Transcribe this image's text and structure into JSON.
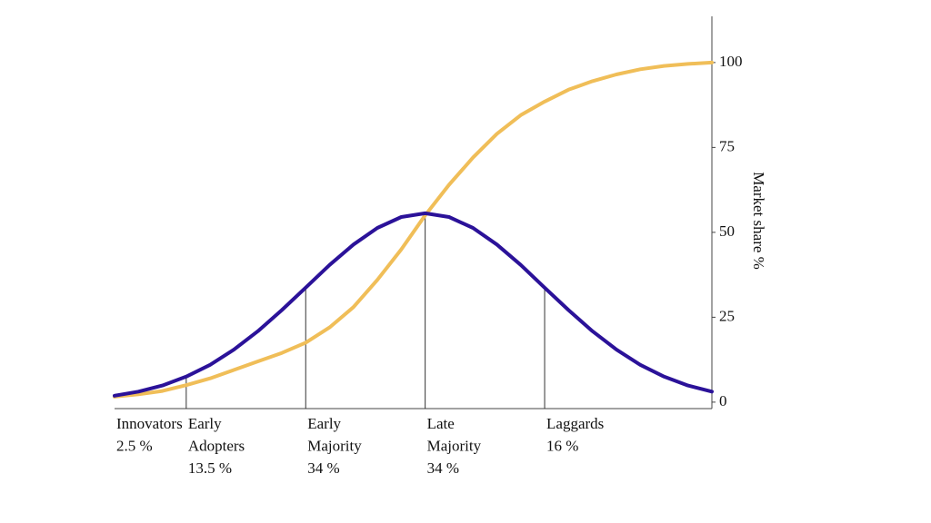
{
  "chart_data": {
    "type": "line",
    "y_label": "Market share %",
    "x": [
      -2.6,
      -2.4,
      -2.2,
      -2.0,
      -1.8,
      -1.6,
      -1.4,
      -1.2,
      -1.0,
      -0.8,
      -0.6,
      -0.4,
      -0.2,
      0,
      0.2,
      0.4,
      0.6,
      0.8,
      1.0,
      1.2,
      1.4,
      1.6,
      1.8,
      2.0,
      2.2,
      2.4
    ],
    "xlim": [
      -2.6,
      2.4
    ],
    "ylim": [
      -1.9,
      113.6
    ],
    "yticks": [
      0,
      25,
      50,
      75,
      100
    ],
    "y_axis_side": "right",
    "series": [
      {
        "color": "#2b1299",
        "values": [
          1.9,
          3.1,
          4.9,
          7.5,
          11.0,
          15.5,
          20.9,
          27.1,
          33.7,
          40.4,
          46.4,
          51.3,
          54.5,
          55.6,
          54.5,
          51.3,
          46.4,
          40.4,
          33.7,
          27.1,
          20.9,
          15.5,
          11.0,
          7.5,
          4.9,
          3.1
        ]
      },
      {
        "color": "#f0be58",
        "values": [
          1.6,
          2.3,
          3.3,
          5.0,
          7.0,
          9.5,
          12.0,
          14.5,
          17.5,
          22,
          28,
          36,
          45,
          55,
          64,
          72,
          79,
          84.5,
          88.5,
          92,
          94.5,
          96.5,
          98,
          99,
          99.6,
          100
        ]
      }
    ],
    "boundaries": [
      -2,
      -1,
      0,
      1
    ],
    "segments": {
      "categories": [
        "Innovators",
        "Early Adopters",
        "Early Majority",
        "Late Majority",
        "Laggards"
      ],
      "values": [
        2.5,
        13.5,
        34,
        34,
        16
      ],
      "value_labels": [
        "2.5 %",
        "13.5 %",
        "34 %",
        "34 %",
        "16 %"
      ]
    }
  }
}
